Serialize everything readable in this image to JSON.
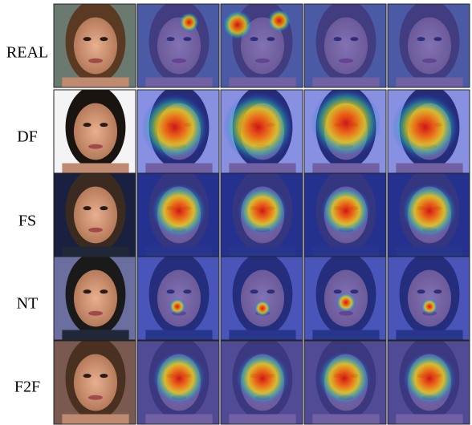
{
  "rows": [
    {
      "label": "REAL"
    },
    {
      "label": "DF"
    },
    {
      "label": "FS"
    },
    {
      "label": "NT"
    },
    {
      "label": "F2F"
    }
  ]
}
